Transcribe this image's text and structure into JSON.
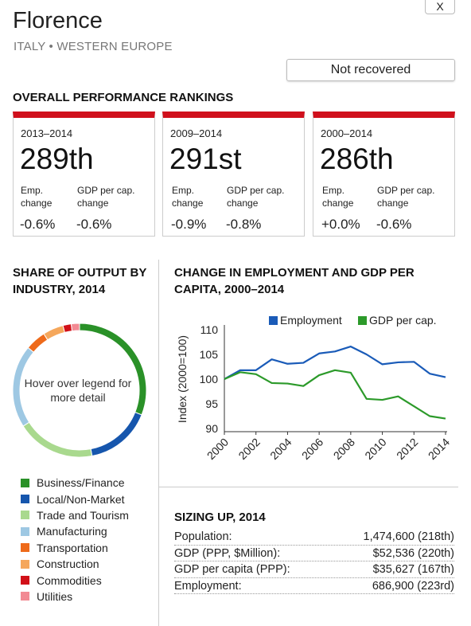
{
  "header": {
    "close_label": "X",
    "city": "Florence",
    "region": "ITALY • WESTERN EUROPE",
    "status": "Not recovered"
  },
  "rankings": {
    "title": "OVERALL PERFORMANCE RANKINGS",
    "cards": [
      {
        "period": "2013–2014",
        "rank": "289th",
        "emp_label": [
          "Emp.",
          "change"
        ],
        "gdp_label": [
          "GDP per cap.",
          "change"
        ],
        "emp": "-0.6%",
        "gdp": "-0.6%"
      },
      {
        "period": "2009–2014",
        "rank": "291st",
        "emp_label": [
          "Emp.",
          "change"
        ],
        "gdp_label": [
          "GDP per cap.",
          "change"
        ],
        "emp": "-0.9%",
        "gdp": "-0.8%"
      },
      {
        "period": "2000–2014",
        "rank": "286th",
        "emp_label": [
          "Emp.",
          "change"
        ],
        "gdp_label": [
          "GDP per cap.",
          "change"
        ],
        "emp": "+0.0%",
        "gdp": "-0.6%"
      }
    ],
    "accent_color": "#d0101c"
  },
  "share": {
    "title": "SHARE OF OUTPUT BY INDUSTRY, 2014",
    "hint": "Hover over legend for more detail"
  },
  "change": {
    "title": "CHANGE IN EMPLOYMENT AND GDP PER CAPITA, 2000–2014"
  },
  "sizing": {
    "title": "SIZING UP, 2014",
    "rows": [
      {
        "label": "Population:",
        "value": "1,474,600 (218th)"
      },
      {
        "label": "GDP (PPP, $Million):",
        "value": "$52,536 (220th)"
      },
      {
        "label": "GDP per capita (PPP):",
        "value": "$35,627 (167th)"
      },
      {
        "label": "Employment:",
        "value": "686,900 (223rd)"
      }
    ]
  },
  "chart_data": [
    {
      "type": "pie",
      "title": "SHARE OF OUTPUT BY INDUSTRY, 2014",
      "donut": true,
      "categories": [
        "Business/Finance",
        "Local/Non-Market",
        "Trade and Tourism",
        "Manufacturing",
        "Transportation",
        "Construction",
        "Commodities",
        "Utilities"
      ],
      "values": [
        31,
        16,
        19,
        20,
        5,
        5,
        2,
        2
      ],
      "colors": [
        "#2a9128",
        "#1656ad",
        "#a9d98e",
        "#9ec8e3",
        "#ee6a1a",
        "#f5a75c",
        "#d11018",
        "#f28a93"
      ]
    },
    {
      "type": "line",
      "title": "CHANGE IN EMPLOYMENT AND GDP PER CAPITA, 2000–2014",
      "xlabel": "",
      "ylabel": "Index (2000=100)",
      "x": [
        2000,
        2001,
        2002,
        2003,
        2004,
        2005,
        2006,
        2007,
        2008,
        2009,
        2010,
        2011,
        2012,
        2013,
        2014
      ],
      "x_ticks": [
        "2000",
        "2002",
        "2004",
        "2006",
        "2008",
        "2010",
        "2012",
        "2014"
      ],
      "ylim": [
        90,
        110
      ],
      "y_ticks": [
        "90",
        "95",
        "100",
        "105",
        "110"
      ],
      "legend_position": "top",
      "series": [
        {
          "name": "Employment",
          "color": "#1a5bb8",
          "values": [
            100,
            101.8,
            101.8,
            104,
            103.1,
            103.3,
            105.2,
            105.6,
            106.6,
            105,
            103,
            103.4,
            103.5,
            101.1,
            100.4
          ]
        },
        {
          "name": "GDP per cap.",
          "color": "#2c9a2a",
          "values": [
            100,
            101.4,
            101,
            99.2,
            99.1,
            98.6,
            100.8,
            101.8,
            101.3,
            96,
            95.8,
            96.5,
            94.5,
            92.5,
            92
          ]
        }
      ]
    }
  ]
}
